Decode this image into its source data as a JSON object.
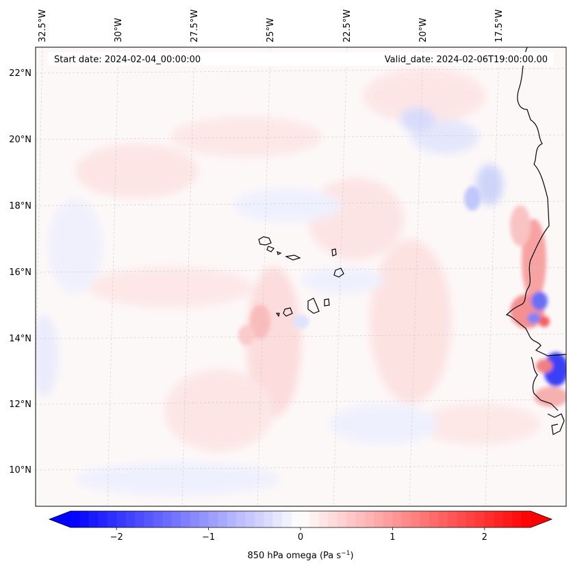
{
  "header": {
    "start_date": "Start date: 2024-02-04_00:00:00",
    "valid_date": "Valid_date: 2024-02-06T19:00:00.00"
  },
  "map": {
    "lon_labels": [
      "32.5°W",
      "30°W",
      "27.5°W",
      "25°W",
      "22.5°W",
      "20°W",
      "17.5°W"
    ],
    "lat_labels": [
      "22°N",
      "20°N",
      "18°N",
      "16°N",
      "14°N",
      "12°N",
      "10°N"
    ],
    "field": "850 hPa omega",
    "gridlines": true,
    "coastlines": true
  },
  "colorbar": {
    "label_text": "850 hPa omega (Pa s",
    "label_sup": "−1",
    "label_close": ")",
    "ticks": [
      "−2",
      "−1",
      "0",
      "1",
      "2"
    ],
    "tick_values": [
      -2,
      -1,
      0,
      1,
      2
    ],
    "vmin": -2.5,
    "vmax": 2.5,
    "extend": "both",
    "cmap": "bwr",
    "colors": {
      "low": "#0000ff",
      "mid": "#ffffff",
      "high": "#ff0000"
    }
  }
}
